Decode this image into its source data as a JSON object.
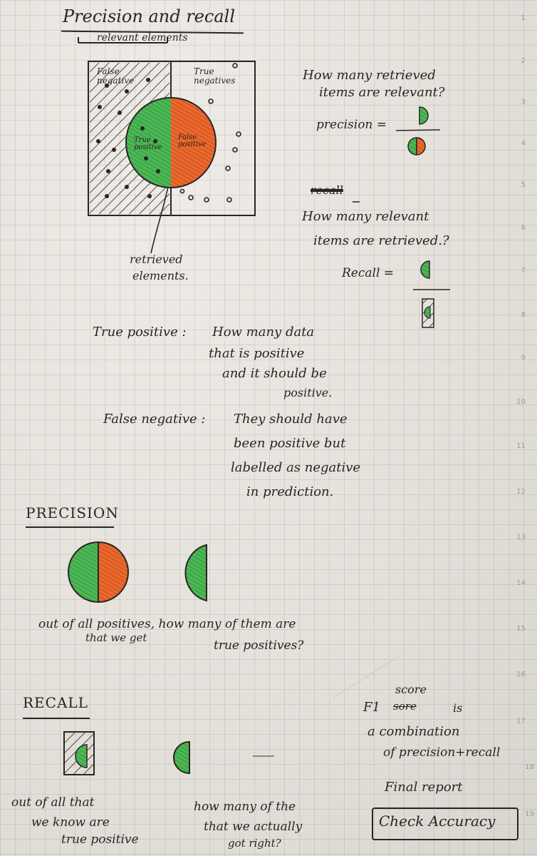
{
  "title": "Precision and recall",
  "diagram": {
    "relevant_label": "relevant elements",
    "false_negative": "False negative",
    "true_negatives": "True negatives",
    "true_positive": "True positive",
    "false_positive": "False positive",
    "retrieved_label_1": "retrieved",
    "retrieved_label_2": "elements."
  },
  "precision_q": [
    "How many retrieved",
    "items are relevant?"
  ],
  "precision_formula": "precision =",
  "recall_heading_scribble": "recall",
  "recall_q": [
    "How many relevant",
    "items are retrieved.?"
  ],
  "recall_formula": "Recall =",
  "tp_def": {
    "term": "True positive :",
    "lines": [
      "How many data",
      "that is positive",
      "and it should be",
      "positive."
    ]
  },
  "fn_def": {
    "term": "False negative :",
    "lines": [
      "They should have",
      "been positive but",
      "labelled as negative",
      "in prediction."
    ]
  },
  "precision_heading": "PRECISION",
  "precision_caption": [
    "out of all positives, how many of them are",
    "that we get",
    "true positives?"
  ],
  "recall_heading": "RECALL",
  "f1": {
    "score_word": "score",
    "f1_text": "F1",
    "scratched": "sore",
    "is": "is",
    "line2": "a combination",
    "line3": "of precision+recall"
  },
  "final_report": "Final report",
  "check_accuracy": "Check Accuracy",
  "recall_caption": [
    "out of all that",
    "we know are",
    "true positive",
    "how many of the",
    "that we actually",
    "got right?"
  ],
  "page_numbers": [
    "1",
    "2",
    "3",
    "4",
    "5",
    "6",
    "7",
    "8",
    "9",
    "10",
    "11",
    "12",
    "13",
    "14",
    "15",
    "16",
    "17",
    "18",
    "19"
  ],
  "colors": {
    "ink": "#2a2522",
    "green": "#3aa845",
    "orange": "#e0561e",
    "paper": "#e9e7e2"
  },
  "icons": [
    "hatch-pattern",
    "venn-circle",
    "divider-line"
  ]
}
